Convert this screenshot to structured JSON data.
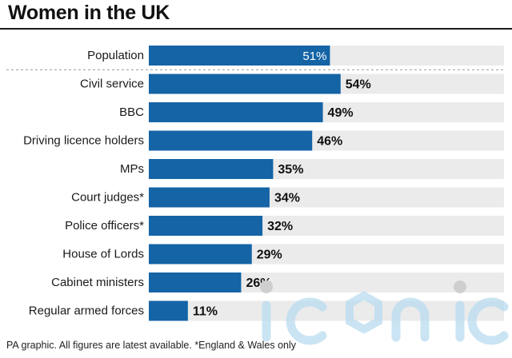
{
  "title": "Women in the UK",
  "footnote": "PA graphic. All figures are latest available. *England & Wales only",
  "colors": {
    "bar": "#1464a6",
    "track": "#ebebeb",
    "inside_label": "#ffffff",
    "outside_label": "#111111",
    "divider": "#999999"
  },
  "chart_data": {
    "type": "bar",
    "orientation": "horizontal",
    "title": "Women in the UK",
    "categories": [
      "Population",
      "Civil service",
      "BBC",
      "Driving licence holders",
      "MPs",
      "Court judges*",
      "Police officers*",
      "House of Lords",
      "Cabinet ministers",
      "Regular armed forces"
    ],
    "values": [
      51,
      54,
      49,
      46,
      35,
      34,
      32,
      29,
      26,
      11
    ],
    "labels": [
      "51%",
      "54%",
      "49%",
      "46%",
      "35%",
      "34%",
      "32%",
      "29%",
      "26%",
      "11%"
    ],
    "xlim": [
      0,
      100
    ],
    "reference_row": "Population",
    "grid": false,
    "legend": "none"
  },
  "watermark": {
    "text": "iconic",
    "color": "#b9dcf0"
  }
}
